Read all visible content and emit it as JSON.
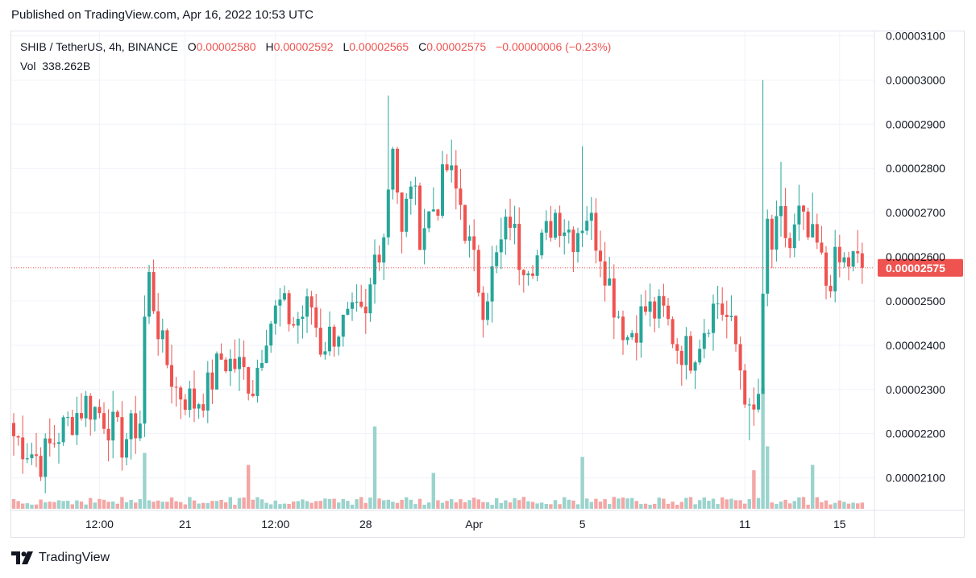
{
  "header": {
    "published": "Published on TradingView.com, Apr 16, 2022 10:53 UTC"
  },
  "legend": {
    "symbol": "SHIB / TetherUS, 4h, BINANCE",
    "o_label": "O",
    "o_value": "0.00002580",
    "h_label": "H",
    "h_value": "0.00002592",
    "l_label": "L",
    "l_value": "0.00002565",
    "c_label": "C",
    "c_value": "0.00002575",
    "change": "−0.00000006 (−0.23%)",
    "vol_label": "Vol",
    "vol_value": "338.262B"
  },
  "footer": {
    "brand": "TradingView"
  },
  "colors": {
    "up": "#26a69a",
    "down": "#ef5350",
    "up_vol": "#9bd3cd",
    "down_vol": "#f4a6a5",
    "grid": "#f0f3fa",
    "current": "#ef5350"
  },
  "chart_data": {
    "type": "candlestick",
    "symbol": "SHIB / TetherUS",
    "interval": "4h",
    "exchange": "BINANCE",
    "y_axis": {
      "min": 2.03e-05,
      "max": 3.11e-05,
      "ticks": [
        {
          "value": 3.1e-05,
          "label": "0.00003100"
        },
        {
          "value": 3e-05,
          "label": "0.00003000"
        },
        {
          "value": 2.9e-05,
          "label": "0.00002900"
        },
        {
          "value": 2.8e-05,
          "label": "0.00002800"
        },
        {
          "value": 2.7e-05,
          "label": "0.00002700"
        },
        {
          "value": 2.6e-05,
          "label": "0.00002600"
        },
        {
          "value": 2.5e-05,
          "label": "0.00002500"
        },
        {
          "value": 2.4e-05,
          "label": "0.00002400"
        },
        {
          "value": 2.3e-05,
          "label": "0.00002300"
        },
        {
          "value": 2.2e-05,
          "label": "0.00002200"
        },
        {
          "value": 2.1e-05,
          "label": "0.00002100"
        }
      ]
    },
    "x_axis": {
      "ticks": [
        {
          "index": 19,
          "label": "12:00"
        },
        {
          "index": 38,
          "label": "21"
        },
        {
          "index": 58,
          "label": "12:00"
        },
        {
          "index": 78,
          "label": "28"
        },
        {
          "index": 102,
          "label": "Apr"
        },
        {
          "index": 126,
          "label": "5"
        },
        {
          "index": 162,
          "label": "11"
        },
        {
          "index": 183,
          "label": "15"
        }
      ]
    },
    "current_price": {
      "value": 2.575e-05,
      "label": "0.00002575"
    },
    "series_keypoints": [
      [
        0,
        2.195e-05
      ],
      [
        6,
        2.14e-05
      ],
      [
        10,
        2.2e-05
      ],
      [
        16,
        2.27e-05
      ],
      [
        20,
        2.24e-05
      ],
      [
        24,
        2.18e-05
      ],
      [
        28,
        2.23e-05
      ],
      [
        29,
        2.46e-05
      ],
      [
        30,
        2.55e-05
      ],
      [
        33,
        2.39e-05
      ],
      [
        36,
        2.3e-05
      ],
      [
        40,
        2.27e-05
      ],
      [
        43,
        2.3e-05
      ],
      [
        46,
        2.37e-05
      ],
      [
        50,
        2.35e-05
      ],
      [
        53,
        2.31e-05
      ],
      [
        56,
        2.44e-05
      ],
      [
        59,
        2.49e-05
      ],
      [
        62,
        2.45e-05
      ],
      [
        66,
        2.49e-05
      ],
      [
        68,
        2.4e-05
      ],
      [
        72,
        2.44e-05
      ],
      [
        76,
        2.46e-05
      ],
      [
        78,
        2.45e-05
      ],
      [
        80,
        2.6e-05
      ],
      [
        82,
        2.66e-05
      ],
      [
        84,
        2.87e-05
      ],
      [
        86,
        2.64e-05
      ],
      [
        88,
        2.78e-05
      ],
      [
        90,
        2.66e-05
      ],
      [
        94,
        2.73e-05
      ],
      [
        96,
        2.8e-05
      ],
      [
        99,
        2.72e-05
      ],
      [
        101,
        2.62e-05
      ],
      [
        104,
        2.5e-05
      ],
      [
        106,
        2.56e-05
      ],
      [
        110,
        2.69e-05
      ],
      [
        112,
        2.6e-05
      ],
      [
        116,
        2.6e-05
      ],
      [
        120,
        2.7e-05
      ],
      [
        124,
        2.65e-05
      ],
      [
        127,
        2.7e-05
      ],
      [
        130,
        2.62e-05
      ],
      [
        133,
        2.5e-05
      ],
      [
        136,
        2.42e-05
      ],
      [
        140,
        2.48e-05
      ],
      [
        144,
        2.47e-05
      ],
      [
        147,
        2.4e-05
      ],
      [
        150,
        2.38e-05
      ],
      [
        152,
        2.42e-05
      ],
      [
        154,
        2.47e-05
      ],
      [
        156,
        2.5e-05
      ],
      [
        158,
        2.46e-05
      ],
      [
        160,
        2.4e-05
      ],
      [
        162,
        2.3e-05
      ],
      [
        163,
        2.23e-05
      ],
      [
        164,
        2.24e-05
      ],
      [
        165,
        2.29e-05
      ],
      [
        166,
        2.48e-05
      ],
      [
        167,
        2.67e-05
      ],
      [
        168,
        2.62e-05
      ],
      [
        170,
        2.68e-05
      ],
      [
        172,
        2.62e-05
      ],
      [
        174,
        2.69e-05
      ],
      [
        176,
        2.64e-05
      ],
      [
        178,
        2.62e-05
      ],
      [
        180,
        2.54e-05
      ],
      [
        182,
        2.58e-05
      ],
      [
        186,
        2.59e-05
      ],
      [
        188,
        2.575e-05
      ]
    ],
    "wick_spikes": [
      {
        "index": 83,
        "high": 2.965e-05
      },
      {
        "index": 97,
        "high": 2.865e-05
      },
      {
        "index": 126,
        "high": 2.85e-05
      },
      {
        "index": 166,
        "high": 3e-05,
        "low": 2.47e-05
      },
      {
        "index": 163,
        "low": 2.185e-05
      },
      {
        "index": 170,
        "high": 2.815e-05
      },
      {
        "index": 177,
        "high": 2.745e-05
      }
    ],
    "volume_spikes": [
      {
        "index": 164,
        "level": 0.29
      },
      {
        "index": 166,
        "level": 0.91
      },
      {
        "index": 167,
        "level": 0.47
      },
      {
        "index": 80,
        "level": 0.62
      },
      {
        "index": 29,
        "level": 0.42
      },
      {
        "index": 52,
        "level": 0.33
      },
      {
        "index": 126,
        "level": 0.39
      },
      {
        "index": 177,
        "level": 0.33
      },
      {
        "index": 93,
        "level": 0.27
      }
    ]
  }
}
